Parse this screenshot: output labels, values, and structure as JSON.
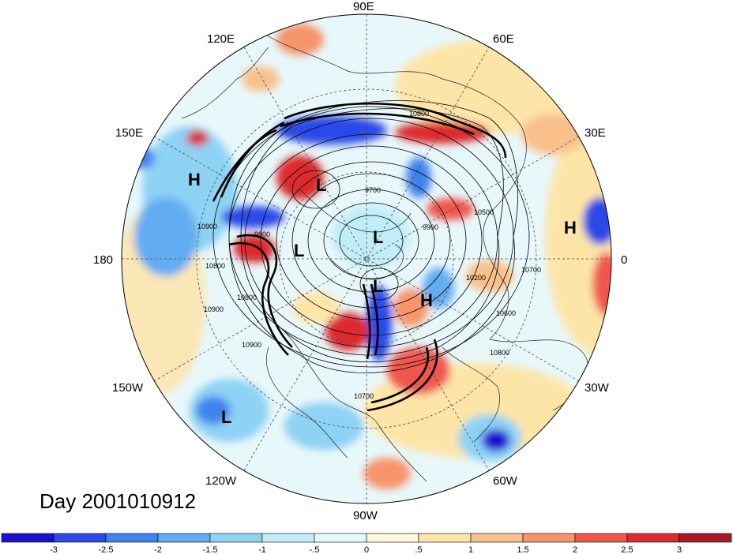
{
  "map": {
    "longitude_labels": [
      {
        "text": "90E",
        "lon": 90
      },
      {
        "text": "60E",
        "lon": 60
      },
      {
        "text": "30E",
        "lon": 30
      },
      {
        "text": "0",
        "lon": 0
      },
      {
        "text": "30W",
        "lon": -30
      },
      {
        "text": "60W",
        "lon": -60
      },
      {
        "text": "90W",
        "lon": -90
      },
      {
        "text": "120W",
        "lon": -120
      },
      {
        "text": "150W",
        "lon": -150
      },
      {
        "text": "180",
        "lon": 180
      },
      {
        "text": "150E",
        "lon": 150
      },
      {
        "text": "120E",
        "lon": 120
      }
    ],
    "pressure_centers": [
      {
        "label": "H",
        "name": "high-center-pacific"
      },
      {
        "label": "L",
        "name": "low-center-siberia"
      },
      {
        "label": "L",
        "name": "low-center-bering"
      },
      {
        "label": "L",
        "name": "low-center-pole"
      },
      {
        "label": "L",
        "name": "low-center-baffin"
      },
      {
        "label": "H",
        "name": "high-center-greenland"
      },
      {
        "label": "H",
        "name": "high-center-atlantic"
      },
      {
        "label": "L",
        "name": "low-center-northpacific"
      }
    ],
    "contour_labels": [
      "10800",
      "9700",
      "10500",
      "9900",
      "10200",
      "10700",
      "10600",
      "10800",
      "10900",
      "10800",
      "10900",
      "10800",
      "9800",
      "10700",
      "10900"
    ]
  },
  "title": "Day 2001010912",
  "colorbar": {
    "colors": [
      "#1a10d0",
      "#2c48e8",
      "#3f83ee",
      "#62acf2",
      "#8ed2f4",
      "#c1edf8",
      "#e6f9fa",
      "#fdf8da",
      "#fde5a8",
      "#f9c08c",
      "#f6946c",
      "#f0574d",
      "#dc2c2e",
      "#a81b25"
    ],
    "ticks": [
      "-3",
      "-2.5",
      "-2",
      "-1.5",
      "-1",
      "-.5",
      "0",
      ".5",
      "1",
      "1.5",
      "2",
      "2.5",
      "3"
    ]
  }
}
